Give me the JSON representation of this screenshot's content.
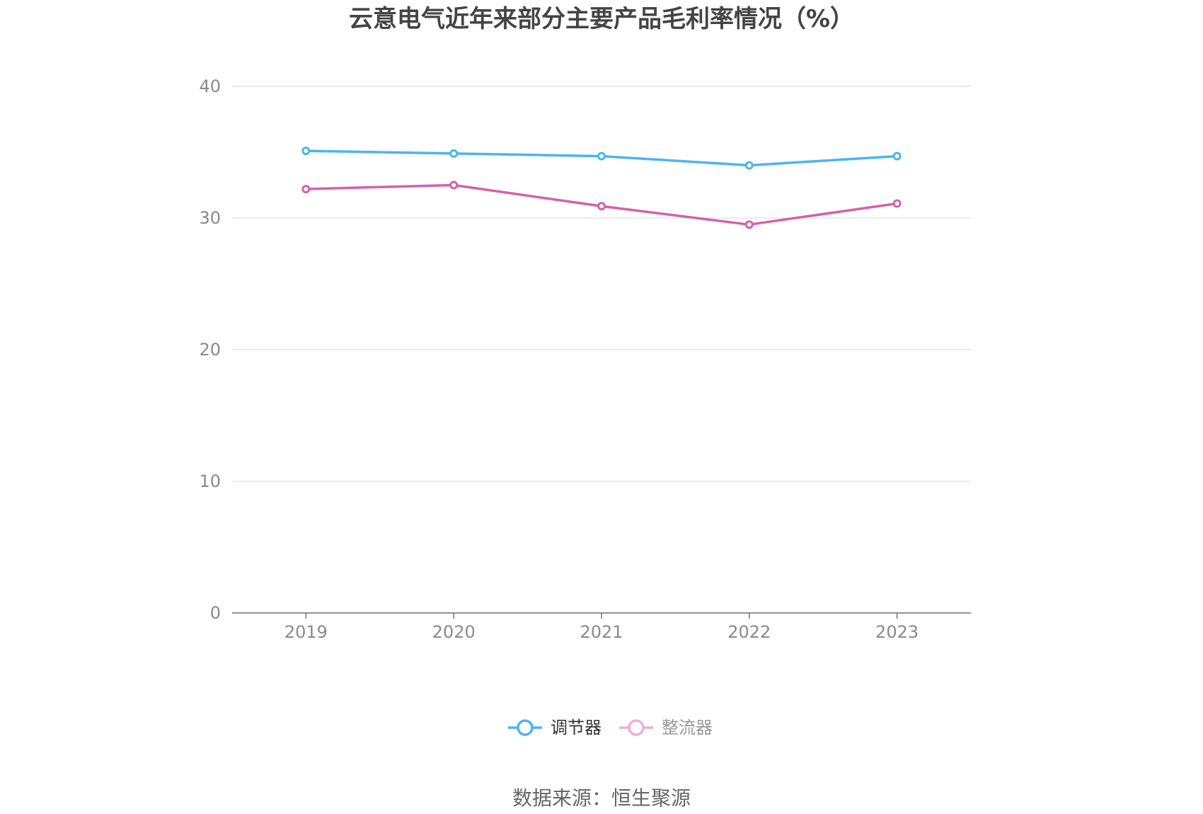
{
  "chart_data": {
    "type": "line",
    "title": "云意电气近年来部分主要产品毛利率情况（%）",
    "categories": [
      "2019",
      "2020",
      "2021",
      "2022",
      "2023"
    ],
    "ylim": [
      0,
      40
    ],
    "yticks": [
      0,
      10,
      20,
      30,
      40
    ],
    "grid": true,
    "legend_position": "bottom-center",
    "series": [
      {
        "name": "调节器",
        "color": "#4bb5ee",
        "values": [
          35.1,
          34.9,
          34.7,
          34.0,
          34.7
        ]
      },
      {
        "name": "整流器",
        "color": "#d462a6",
        "legend_color": "#eab0d3",
        "values": [
          32.2,
          32.5,
          30.9,
          29.5,
          31.1
        ]
      }
    ],
    "source": "数据来源：恒生聚源"
  }
}
